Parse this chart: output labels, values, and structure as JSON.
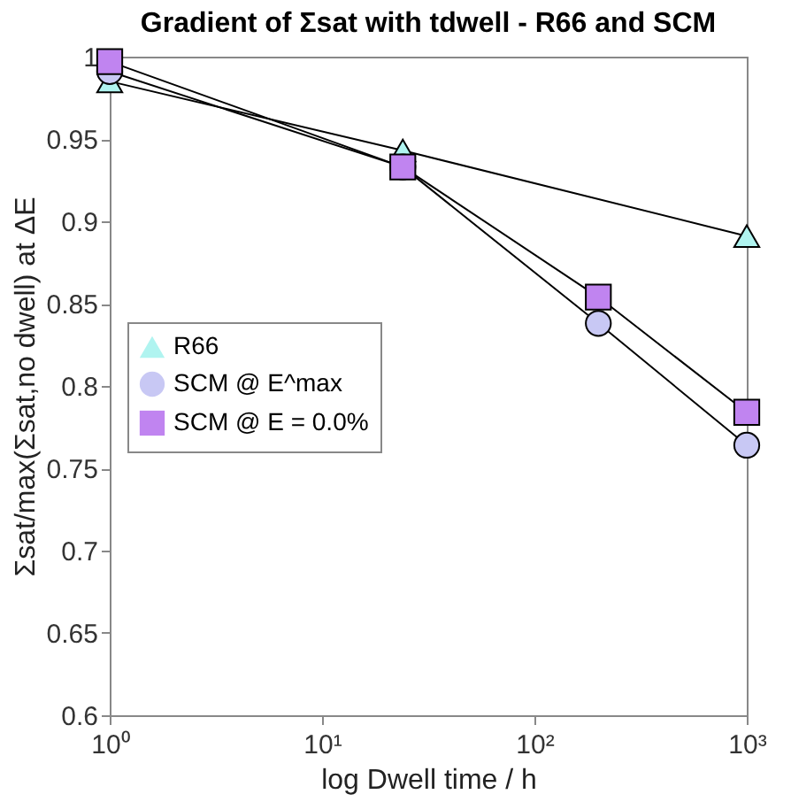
{
  "chart_data": {
    "type": "line",
    "title": "Gradient of Σsat with tdwell - R66 and SCM",
    "xlabel": "log Dwell time / h",
    "ylabel": "Σsat/max(Σsat,no dwell) at ΔE",
    "log": "x",
    "xlim": [
      1,
      1000
    ],
    "ylim": [
      0.6,
      1
    ],
    "xticks": [
      {
        "value": 1,
        "label": "10⁰"
      },
      {
        "value": 10,
        "label": "10¹"
      },
      {
        "value": 100,
        "label": "10²"
      },
      {
        "value": 1000,
        "label": "10³"
      }
    ],
    "yticks": [
      0.6,
      0.65,
      0.7,
      0.75,
      0.8,
      0.85,
      0.9,
      0.95,
      1
    ],
    "grid": false,
    "legend": "left",
    "line_style": "solid",
    "series": [
      {
        "name": "R66",
        "color": "#b0f4f0",
        "marker": "triangle",
        "x": [
          1,
          24,
          1000
        ],
        "values": [
          0.985,
          0.943,
          0.891
        ]
      },
      {
        "name": "SCM @ E^max",
        "color": "#c8c8f4",
        "marker": "circle",
        "x": [
          1,
          24,
          200,
          1000
        ],
        "values": [
          0.991,
          0.933,
          0.838,
          0.764
        ]
      },
      {
        "name": "SCM @ E = 0.0%",
        "color": "#c084f0",
        "marker": "square",
        "x": [
          1,
          24,
          200,
          1000
        ],
        "values": [
          0.997,
          0.933,
          0.854,
          0.784
        ]
      }
    ]
  }
}
